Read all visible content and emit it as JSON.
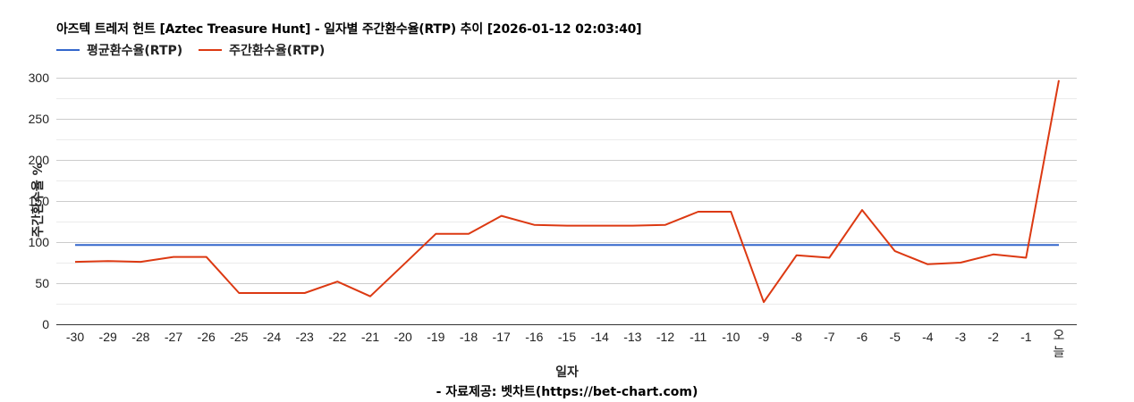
{
  "title": "아즈텍 트레저 헌트 [Aztec Treasure Hunt] - 일자별 주간환수율(RTP) 추이 [2026-01-12 02:03:40]",
  "legend": [
    {
      "label": "평균환수율(RTP)",
      "color": "#3366cc"
    },
    {
      "label": "주간환수율(RTP)",
      "color": "#dc3912"
    }
  ],
  "xaxis_title": "일자",
  "yaxis_title": "주간환수율 %",
  "source": "- 자료제공: 벳차트(https://bet-chart.com)",
  "chart_data": {
    "type": "line",
    "title": "아즈텍 트레저 헌트 [Aztec Treasure Hunt] - 일자별 주간환수율(RTP) 추이 [2026-01-12 02:03:40]",
    "xlabel": "일자",
    "ylabel": "주간환수율 %",
    "ylim": [
      0,
      300
    ],
    "yticks": [
      0,
      50,
      100,
      150,
      200,
      250,
      300
    ],
    "grid": true,
    "legend_position": "top",
    "categories": [
      "-30",
      "-29",
      "-28",
      "-27",
      "-26",
      "-25",
      "-24",
      "-23",
      "-22",
      "-21",
      "-20",
      "-19",
      "-18",
      "-17",
      "-16",
      "-15",
      "-14",
      "-13",
      "-12",
      "-11",
      "-10",
      "-9",
      "-8",
      "-7",
      "-6",
      "-5",
      "-4",
      "-3",
      "-2",
      "-1",
      "오늘"
    ],
    "series": [
      {
        "name": "평균환수율(RTP)",
        "color": "#3366cc",
        "values": [
          96.5,
          96.5,
          96.5,
          96.5,
          96.5,
          96.5,
          96.5,
          96.5,
          96.5,
          96.5,
          96.5,
          96.5,
          96.5,
          96.5,
          96.5,
          96.5,
          96.5,
          96.5,
          96.5,
          96.5,
          96.5,
          96.5,
          96.5,
          96.5,
          96.5,
          96.5,
          96.5,
          96.5,
          96.5,
          96.5,
          96.5
        ]
      },
      {
        "name": "주간환수율(RTP)",
        "color": "#dc3912",
        "values": [
          76,
          77,
          76,
          82,
          82,
          38,
          38,
          38,
          52,
          34,
          72,
          110,
          110,
          132,
          121,
          120,
          120,
          120,
          121,
          137,
          137,
          27,
          84,
          81,
          139,
          89,
          73,
          75,
          85,
          81,
          297
        ]
      }
    ]
  }
}
